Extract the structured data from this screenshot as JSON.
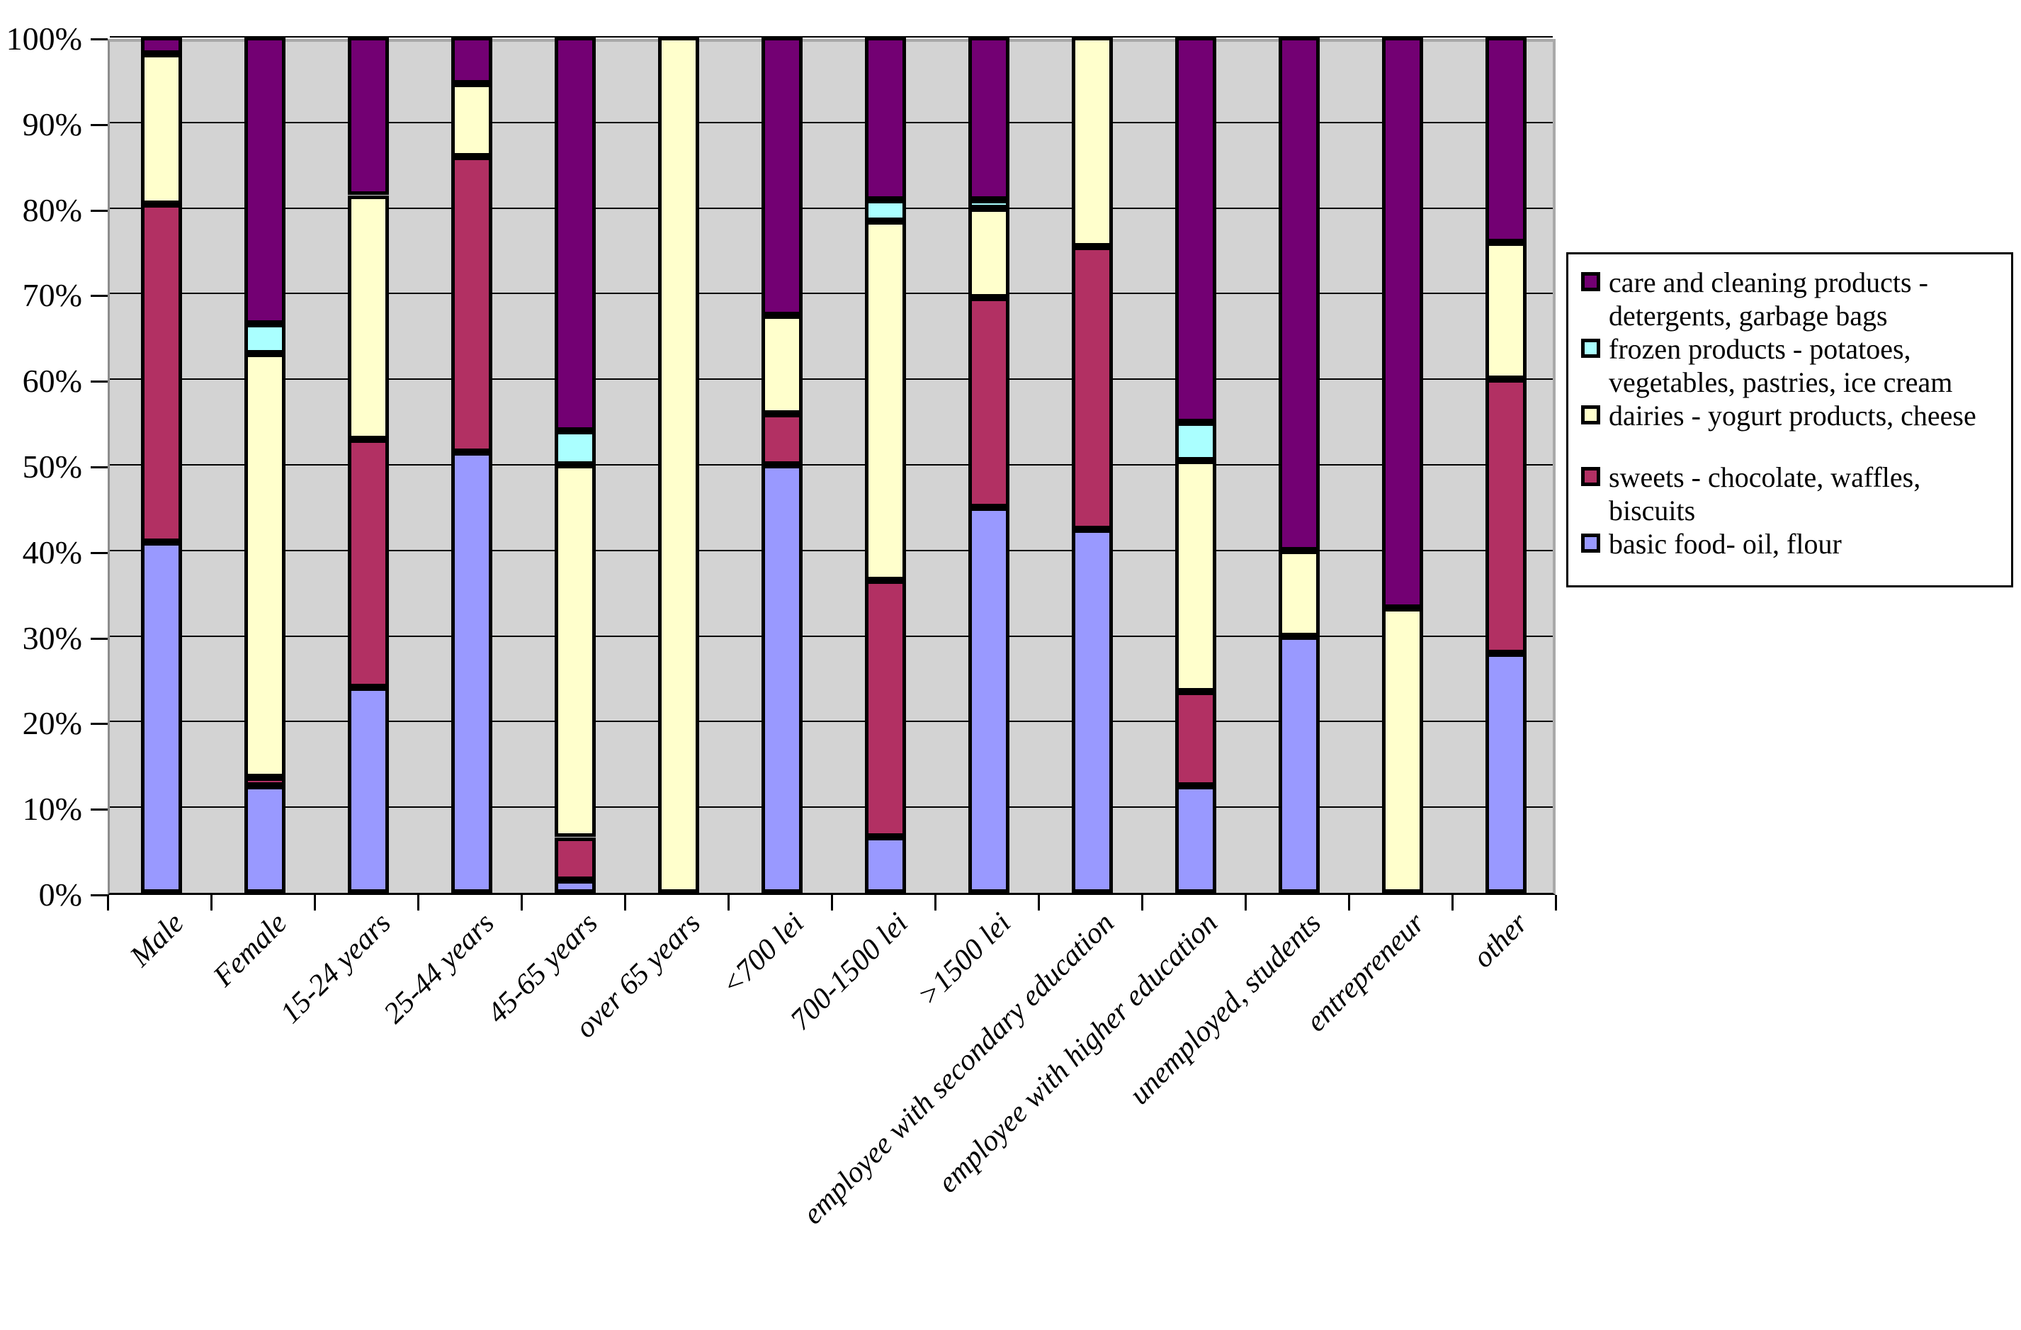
{
  "chart_data": {
    "type": "bar",
    "variant": "100-percent-stacked-column",
    "title": "",
    "categories": [
      "Male",
      "Female",
      "15-24 years",
      "25-44 years",
      "45-65  years",
      "over 65 years",
      "<700 lei",
      "700-1500 lei",
      ">1500 lei",
      "employee with secondary education",
      "employee with higher education",
      "unemployed, students",
      "entrepreneur",
      "other"
    ],
    "series": [
      {
        "key": "basic_food",
        "name": "basic food- oil, flour",
        "color": "#9999FF",
        "values": [
          41,
          12.5,
          24,
          51.5,
          1.5,
          0,
          50,
          6.5,
          45,
          42.5,
          12.5,
          30,
          0,
          28
        ]
      },
      {
        "key": "sweets",
        "name": "sweets - chocolate, waffles, biscuits",
        "color": "#B23063",
        "values": [
          39.5,
          1,
          29,
          34.5,
          5,
          0,
          6,
          30,
          24.5,
          33,
          11,
          0,
          0,
          32
        ]
      },
      {
        "key": "dairies",
        "name": "dairies - yogurt products, cheese",
        "color": "#FFFFCC",
        "values": [
          17.5,
          49.5,
          28.5,
          8.5,
          43.5,
          100,
          11.5,
          42,
          10.5,
          24.5,
          27,
          10,
          33.3,
          16
        ]
      },
      {
        "key": "frozen",
        "name": "frozen products - potatoes, vegetables, pastries, ice cream",
        "color": "#AAFFFF",
        "values": [
          0,
          3.5,
          0,
          0,
          4,
          0,
          0,
          2.5,
          1,
          0,
          4.5,
          0,
          0,
          0
        ]
      },
      {
        "key": "care",
        "name": "care and cleaning products - detergents, garbage bags",
        "color": "#730073",
        "values": [
          2,
          33.5,
          18.5,
          5.5,
          46,
          0,
          32.5,
          19,
          19,
          0,
          45,
          60,
          66.7,
          24
        ]
      }
    ],
    "y_axis": {
      "ticks": [
        "0%",
        "10%",
        "20%",
        "30%",
        "40%",
        "50%",
        "60%",
        "70%",
        "80%",
        "90%",
        "100%"
      ],
      "min": 0,
      "max": 100
    },
    "grid": true,
    "plot_background": "#D3D3D3",
    "legend_position": "right"
  },
  "legend": {
    "items": [
      {
        "series": "care",
        "lines": [
          "care and cleaning products -",
          "detergents, garbage bags"
        ],
        "gap_before": false
      },
      {
        "series": "frozen",
        "lines": [
          " frozen products - potatoes,",
          "vegetables, pastries, ice cream"
        ],
        "gap_before": false
      },
      {
        "series": "dairies",
        "lines": [
          "dairies - yogurt products, cheese"
        ],
        "gap_before": false
      },
      {
        "series": "sweets",
        "lines": [
          "sweets - chocolate, waffles,",
          "biscuits"
        ],
        "gap_before": true
      },
      {
        "series": "basic_food",
        "lines": [
          "basic food- oil, flour"
        ],
        "gap_before": false
      }
    ]
  }
}
